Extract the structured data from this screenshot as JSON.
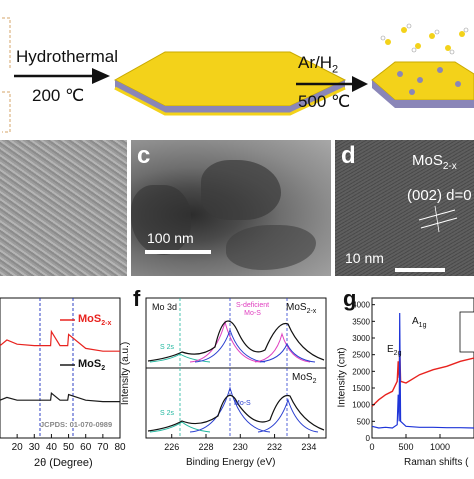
{
  "scheme": {
    "step1_label": "Hydrothermal",
    "step1_temp": "200 ℃",
    "step2_label": "Ar/H",
    "step2_sub": "2",
    "step2_temp": "500 ℃"
  },
  "panel_c": {
    "letter": "c",
    "scale": "100 nm"
  },
  "panel_d": {
    "letter": "d",
    "title_main": "MoS",
    "title_sub": "2-x",
    "plane": "(002) d=0",
    "scale": "10 nm"
  },
  "panel_e": {
    "label_mos2x_main": "MoS",
    "label_mos2x_sub": "2-x",
    "label_mos2_main": "MoS",
    "label_mos2_sub": "2",
    "jcpds": "JCPDS: 01-070-0989",
    "xlabel": "2θ (Degree)",
    "xticks": [
      "20",
      "30",
      "40",
      "50",
      "60",
      "70",
      "80"
    ],
    "colors": {
      "mos2x": "#e8231f",
      "mos2": "#1a1a1a",
      "ref": "#1a2fbf"
    }
  },
  "panel_f": {
    "letter": "f",
    "label_region": "Mo 3d",
    "label_top_main": "MoS",
    "label_top_sub": "2-x",
    "label_bot_main": "MoS",
    "label_bot_sub": "2",
    "ann_sdef_line1": "S-deficient",
    "ann_sdef_line2": "Mo-S",
    "ann_mos": "Mo-S",
    "ann_s2s_top": "S 2s",
    "ann_s2s_bot": "S 2s",
    "ylabel": "Intensity (a.u.)",
    "xlabel": "Binding Energy (eV)",
    "xticks": [
      "226",
      "228",
      "230",
      "232",
      "234"
    ],
    "colors": {
      "pink": "#e040c0",
      "blue": "#2a3fd0",
      "teal": "#22b8a0"
    }
  },
  "panel_g": {
    "letter": "g",
    "ylabel": "Intensity (cnt)",
    "xlabel": "Raman shifts (",
    "yticks": [
      "0",
      "500",
      "1000",
      "1500",
      "2000",
      "2500",
      "3000",
      "3500",
      "4000"
    ],
    "xticks": [
      "0",
      "500",
      "1000"
    ],
    "peak_e2g_main": "E",
    "peak_e2g_sub": "2g",
    "peak_a1g_main": "A",
    "peak_a1g_sub": "1g",
    "colors": {
      "red": "#e8231f",
      "blue": "#1f35d8"
    }
  },
  "chart_data": [
    {
      "type": "line",
      "panel": "e",
      "xlabel": "2θ (Degree)",
      "xlim": [
        10,
        80
      ],
      "series": [
        {
          "name": "MoS2-x",
          "x": [
            10,
            14,
            20,
            30,
            39.5,
            40,
            45,
            49.5,
            50,
            60,
            70,
            80
          ],
          "y": [
            0.66,
            0.7,
            0.67,
            0.66,
            0.66,
            0.76,
            0.66,
            0.66,
            0.74,
            0.64,
            0.62,
            0.62
          ]
        },
        {
          "name": "MoS2",
          "x": [
            10,
            14,
            20,
            30,
            39.5,
            40,
            45,
            49.5,
            50,
            60,
            70,
            80
          ],
          "y": [
            0.27,
            0.29,
            0.27,
            0.27,
            0.27,
            0.32,
            0.27,
            0.27,
            0.31,
            0.27,
            0.26,
            0.26
          ]
        }
      ],
      "reference_lines_x": [
        40,
        50
      ]
    },
    {
      "type": "line",
      "panel": "f",
      "xlabel": "Binding Energy (eV)",
      "xlim": [
        224.5,
        235
      ],
      "peaks_top": {
        "S 2s": 227.0,
        "Mo 3d5/2": 229.8,
        "Mo 3d3/2": 233.0
      },
      "peaks_bottom": {
        "S 2s": 227.2,
        "Mo 3d5/2": 230.0,
        "Mo 3d3/2": 233.2
      }
    },
    {
      "type": "line",
      "panel": "g",
      "ylabel": "Intensity (cnt)",
      "ylim": [
        0,
        4200
      ],
      "xlim": [
        0,
        1500
      ],
      "series": [
        {
          "name": "red",
          "x": [
            0,
            100,
            200,
            300,
            370,
            385,
            400,
            408,
            420,
            500,
            700,
            900,
            1100,
            1300,
            1500
          ],
          "y": [
            950,
            1150,
            1300,
            1400,
            1700,
            2300,
            1800,
            2700,
            1700,
            1650,
            1900,
            2050,
            2150,
            2300,
            2400
          ]
        },
        {
          "name": "blue",
          "x": [
            0,
            100,
            200,
            300,
            370,
            385,
            400,
            408,
            420,
            500,
            700,
            900,
            1100,
            1300,
            1500
          ],
          "y": [
            350,
            300,
            320,
            300,
            400,
            1300,
            500,
            3750,
            500,
            350,
            320,
            320,
            310,
            310,
            300
          ]
        }
      ],
      "peaks": {
        "E2g": 383,
        "A1g": 408
      }
    }
  ]
}
